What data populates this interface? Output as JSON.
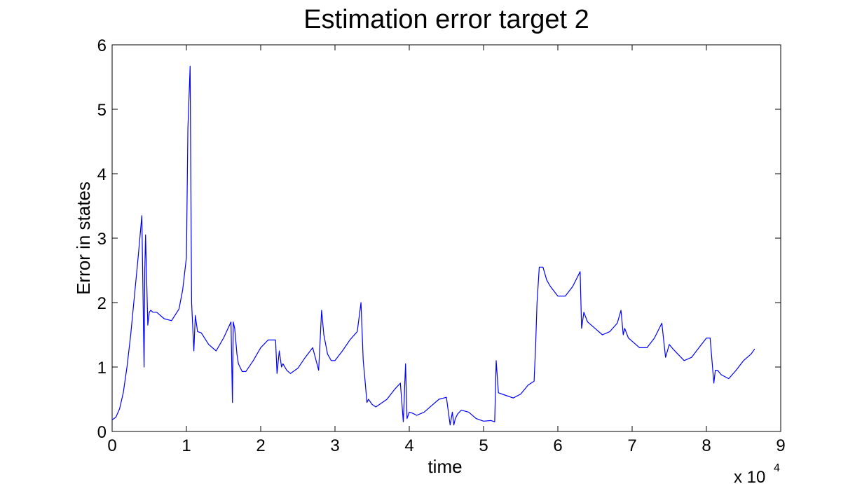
{
  "chart_data": {
    "type": "line",
    "title": "Estimation error target 2",
    "xlabel": "time",
    "ylabel": "Error in states",
    "x_multiplier_label": "x 10",
    "x_multiplier_exponent": "4",
    "xlim": [
      0,
      9
    ],
    "ylim": [
      0,
      6
    ],
    "xticks": [
      "0",
      "1",
      "2",
      "3",
      "4",
      "5",
      "6",
      "7",
      "8",
      "9"
    ],
    "yticks": [
      "0",
      "1",
      "2",
      "3",
      "4",
      "5",
      "6"
    ],
    "grid": false,
    "line_color": "#0000ff",
    "series": [
      {
        "x": [
          0,
          0.05,
          0.1,
          0.15,
          0.2,
          0.25,
          0.3,
          0.35,
          0.4,
          0.43,
          0.44,
          0.45,
          0.48,
          0.5,
          0.52,
          0.55,
          0.6,
          0.7,
          0.8,
          0.9,
          0.95,
          1.0,
          1.02,
          1.05,
          1.07,
          1.1,
          1.12,
          1.15,
          1.2,
          1.3,
          1.4,
          1.5,
          1.6,
          1.62,
          1.63,
          1.65,
          1.68,
          1.7,
          1.75,
          1.8,
          1.9,
          2.0,
          2.1,
          2.2,
          2.22,
          2.25,
          2.28,
          2.3,
          2.35,
          2.4,
          2.5,
          2.6,
          2.7,
          2.78,
          2.82,
          2.85,
          2.9,
          2.95,
          3.0,
          3.1,
          3.2,
          3.3,
          3.35,
          3.38,
          3.4,
          3.43,
          3.45,
          3.5,
          3.55,
          3.6,
          3.7,
          3.8,
          3.88,
          3.92,
          3.95,
          3.97,
          4.0,
          4.05,
          4.1,
          4.2,
          4.3,
          4.4,
          4.5,
          4.55,
          4.58,
          4.6,
          4.62,
          4.65,
          4.7,
          4.8,
          4.9,
          5.0,
          5.1,
          5.15,
          5.17,
          5.2,
          5.3,
          5.4,
          5.5,
          5.6,
          5.68,
          5.7,
          5.72,
          5.75,
          5.8,
          5.85,
          5.9,
          6.0,
          6.1,
          6.2,
          6.3,
          6.32,
          6.35,
          6.4,
          6.5,
          6.6,
          6.7,
          6.8,
          6.85,
          6.88,
          6.9,
          6.95,
          7.0,
          7.1,
          7.2,
          7.3,
          7.4,
          7.45,
          7.5,
          7.55,
          7.6,
          7.7,
          7.8,
          7.9,
          8.0,
          8.05,
          8.1,
          8.12,
          8.15,
          8.2,
          8.3,
          8.4,
          8.5,
          8.6,
          8.65
        ],
        "y": [
          0.18,
          0.22,
          0.35,
          0.6,
          1.0,
          1.5,
          2.1,
          2.7,
          3.35,
          1.0,
          2.5,
          3.05,
          1.65,
          1.85,
          1.88,
          1.85,
          1.85,
          1.75,
          1.72,
          1.9,
          2.2,
          2.7,
          4.7,
          5.67,
          2.0,
          1.25,
          1.8,
          1.55,
          1.53,
          1.35,
          1.25,
          1.45,
          1.7,
          0.45,
          1.7,
          1.6,
          1.2,
          1.05,
          0.93,
          0.93,
          1.1,
          1.3,
          1.42,
          1.42,
          0.9,
          1.25,
          1.0,
          1.05,
          0.95,
          0.9,
          0.98,
          1.15,
          1.3,
          0.95,
          1.88,
          1.5,
          1.2,
          1.1,
          1.1,
          1.25,
          1.42,
          1.55,
          2.0,
          1.1,
          0.85,
          0.45,
          0.5,
          0.42,
          0.38,
          0.42,
          0.5,
          0.65,
          0.75,
          0.15,
          1.05,
          0.2,
          0.3,
          0.28,
          0.25,
          0.3,
          0.4,
          0.5,
          0.53,
          0.1,
          0.3,
          0.1,
          0.2,
          0.27,
          0.33,
          0.3,
          0.2,
          0.16,
          0.17,
          0.15,
          1.1,
          0.6,
          0.56,
          0.52,
          0.58,
          0.72,
          0.78,
          1.3,
          2.0,
          2.55,
          2.55,
          2.35,
          2.25,
          2.1,
          2.1,
          2.25,
          2.48,
          1.6,
          1.85,
          1.7,
          1.6,
          1.5,
          1.55,
          1.68,
          1.88,
          1.5,
          1.6,
          1.45,
          1.4,
          1.3,
          1.3,
          1.45,
          1.68,
          1.15,
          1.35,
          1.28,
          1.22,
          1.1,
          1.15,
          1.3,
          1.45,
          1.45,
          0.75,
          0.95,
          0.95,
          0.88,
          0.82,
          0.95,
          1.1,
          1.2,
          1.28
        ]
      }
    ]
  }
}
